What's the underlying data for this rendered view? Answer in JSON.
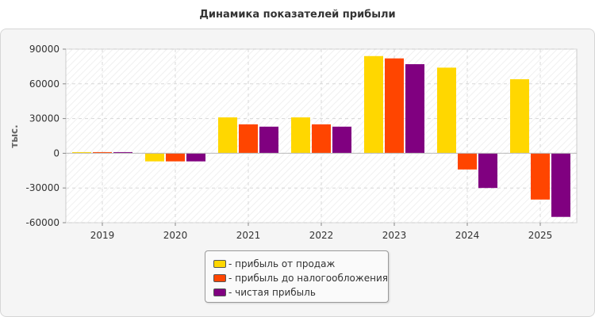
{
  "chart_data": {
    "type": "bar",
    "title": "Динамика показателей прибыли",
    "ylabel": "тыс.",
    "xlabel": "",
    "categories": [
      "2019",
      "2020",
      "2021",
      "2022",
      "2023",
      "2024",
      "2025"
    ],
    "ylim": [
      -60000,
      90000
    ],
    "yticks": [
      90000,
      60000,
      30000,
      0,
      -30000,
      -60000
    ],
    "ytick_labels": [
      "90000",
      "60000",
      "30000",
      "0",
      "-30000",
      "-60000"
    ],
    "grid": true,
    "legend_position": "bottom",
    "series": [
      {
        "name": "- прибыль от продаж",
        "color": "#FFD700",
        "values": [
          1000,
          -7000,
          31000,
          31000,
          84000,
          74000,
          64000
        ]
      },
      {
        "name": "- прибыль до налогообложения",
        "color": "#FF4500",
        "values": [
          1000,
          -7000,
          25000,
          25000,
          82000,
          -14000,
          -40000
        ]
      },
      {
        "name": "- чистая прибыль",
        "color": "#800080",
        "values": [
          1000,
          -7000,
          23000,
          23000,
          77000,
          -30000,
          -55000
        ]
      }
    ]
  }
}
